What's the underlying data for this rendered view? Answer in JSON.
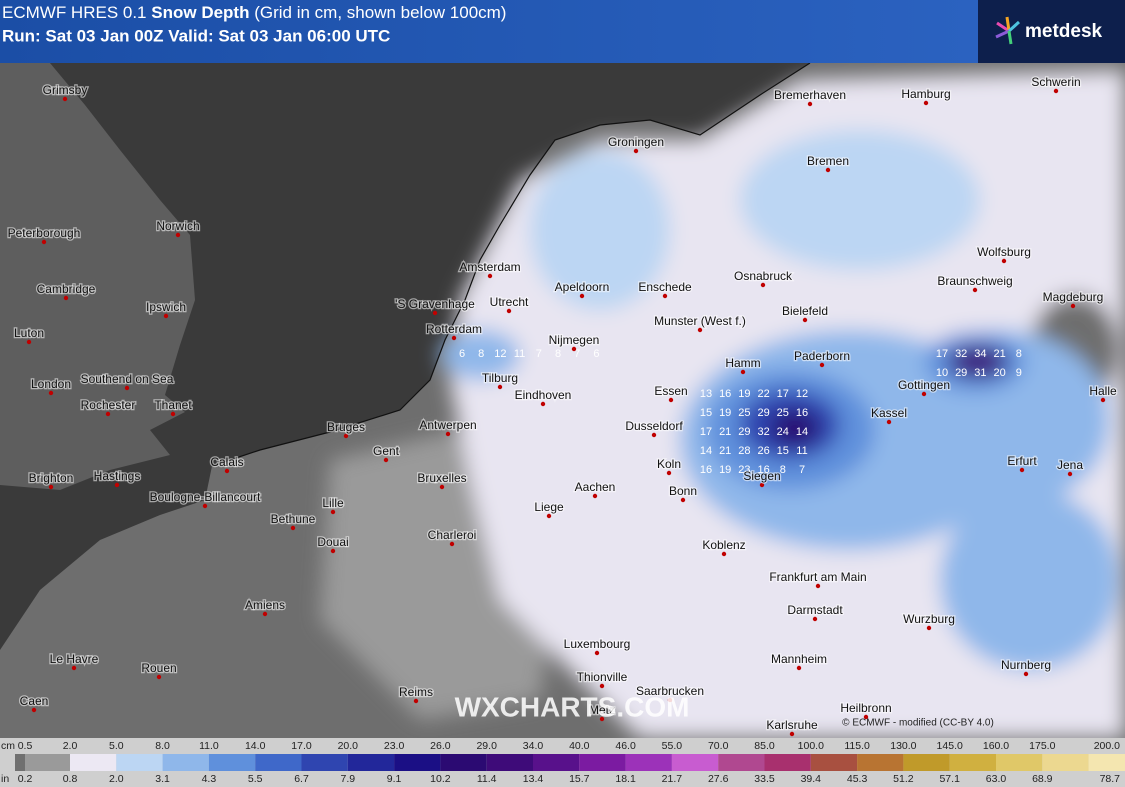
{
  "header": {
    "model": "ECMWF HRES 0.1",
    "parameter": "Snow Depth",
    "note": "(Grid in cm, shown below 100cm)",
    "run": "Run: Sat 03 Jan 00Z Valid: Sat 03 Jan 06:00 UTC",
    "logo": "metdesk"
  },
  "map": {
    "watermark": "WXCHARTS.COM",
    "credit": "© ECMWF - modified (CC-BY 4.0)",
    "cities": [
      "Grimsby",
      "Peterborough",
      "Norwich",
      "Cambridge",
      "Ipswich",
      "Luton",
      "London",
      "Southend on Sea",
      "Rochester",
      "Thanet",
      "Brighton",
      "Hastings",
      "Calais",
      "Boulogne-Billancourt",
      "Bethune",
      "Lille",
      "Douai",
      "Amiens",
      "Le Havre",
      "Rouen",
      "Caen",
      "Reims",
      "Charleroi",
      "Bruxelles",
      "Gent",
      "Bruges",
      "Antwerpen",
      "Liege",
      "Aachen",
      "Koln",
      "Bonn",
      "Dusseldorf",
      "Essen",
      "Hamm",
      "Siegen",
      "Koblenz",
      "Frankfurt am Main",
      "Darmstadt",
      "Mannheim",
      "Heilbronn",
      "Karlsruhe",
      "Saarbrucken",
      "Metz",
      "Thionville",
      "Luxembourg",
      "Wurzburg",
      "Nurnberg",
      "Erfurt",
      "Jena",
      "Kassel",
      "Gottingen",
      "Paderborn",
      "Bielefeld",
      "Munster (West f.)",
      "Osnabruck",
      "Enschede",
      "Apeldoorn",
      "Nijmegen",
      "Eindhoven",
      "Tilburg",
      "Rotterdam",
      "'S Gravenhage",
      "Utrecht",
      "Amsterdam",
      "Groningen",
      "Bremen",
      "Bremerhaven",
      "Hamburg",
      "Schwerin",
      "Wolfsburg",
      "Braunschweig",
      "Magdeburg",
      "Halle"
    ],
    "grid_values": [
      [
        13,
        16,
        19,
        22,
        17,
        12
      ],
      [
        15,
        19,
        25,
        29,
        25,
        16
      ],
      [
        17,
        21,
        29,
        32,
        24,
        14
      ],
      [
        14,
        21,
        28,
        26,
        15,
        11
      ],
      [
        16,
        19,
        23,
        16,
        8,
        7
      ],
      [
        17,
        32,
        34,
        21,
        8
      ],
      [
        10,
        29,
        31,
        20,
        9
      ],
      [
        6,
        8,
        12,
        11,
        7,
        8,
        7,
        6
      ]
    ]
  },
  "colorbar": {
    "unit_top": "cm",
    "unit_bottom": "in",
    "cm": [
      "0.5",
      "2.0",
      "5.0",
      "8.0",
      "11.0",
      "14.0",
      "17.0",
      "20.0",
      "23.0",
      "26.0",
      "29.0",
      "34.0",
      "40.0",
      "46.0",
      "55.0",
      "70.0",
      "85.0",
      "100.0",
      "115.0",
      "130.0",
      "145.0",
      "160.0",
      "175.0",
      "200.0"
    ],
    "in": [
      "0.2",
      "0.8",
      "2.0",
      "3.1",
      "4.3",
      "5.5",
      "6.7",
      "7.9",
      "9.1",
      "10.2",
      "11.4",
      "13.4",
      "15.7",
      "18.1",
      "21.7",
      "27.6",
      "33.5",
      "39.4",
      "45.3",
      "51.2",
      "57.1",
      "63.0",
      "68.9",
      "78.7"
    ],
    "colors": [
      "#9a9a9a",
      "#ece8f3",
      "#bcd6f3",
      "#8fb7ea",
      "#5f90dc",
      "#3f68c9",
      "#2f45b0",
      "#22279a",
      "#1b0f85",
      "#2b0a72",
      "#3e0b79",
      "#58118b",
      "#7b1ba1",
      "#9c32b9",
      "#c85cd0",
      "#b04890",
      "#a8306e",
      "#a85040",
      "#b87432",
      "#c09a2a",
      "#d0b040",
      "#e0c868",
      "#ecd890",
      "#f4e6b0"
    ]
  }
}
